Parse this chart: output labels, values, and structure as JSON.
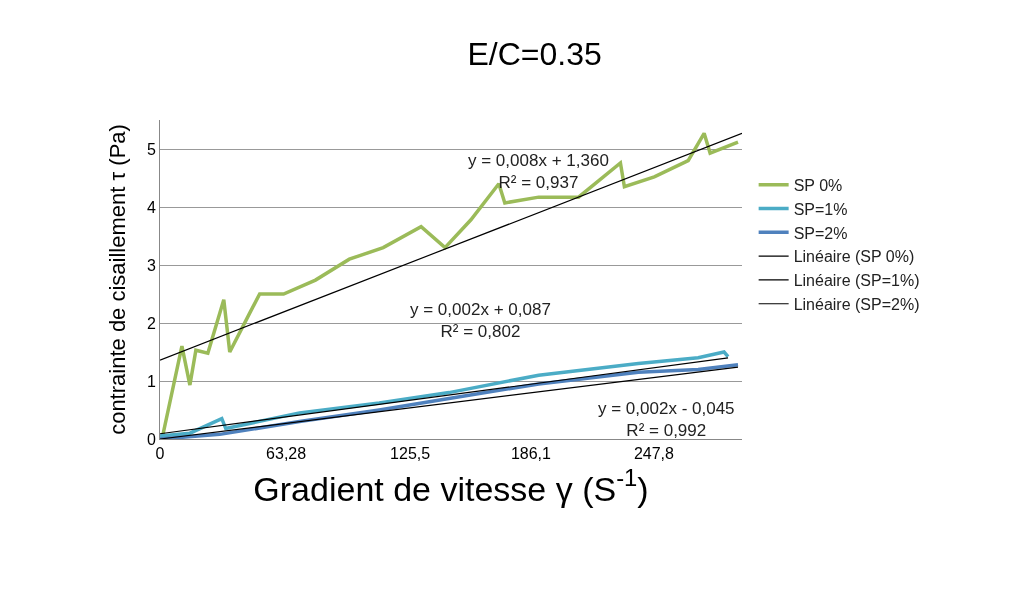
{
  "chart_data": {
    "type": "line",
    "title": "E/C=0.35",
    "xlabel": "Gradient de vitesse γ (S$^{-1}$)",
    "ylabel": "contrainte de cisaillement τ (Pa)",
    "xlim": [
      0,
      292
    ],
    "ylim": [
      0,
      5.5
    ],
    "xticks": [
      0,
      {
        "value": 63.28,
        "label": "63,28"
      },
      {
        "value": 125.5,
        "label": "125,5"
      },
      {
        "value": 186.1,
        "label": "186,1"
      },
      {
        "value": 247.8,
        "label": "247,8"
      }
    ],
    "yticks": [
      0,
      1,
      2,
      3,
      4,
      5
    ],
    "grid": "y",
    "legend": "right",
    "marker": "none",
    "series": [
      {
        "name": "SP 0%",
        "color": "#9bbb59",
        "x": [
          1,
          11,
          15,
          18,
          24,
          32,
          35,
          45,
          50,
          62,
          78,
          95,
          112,
          131,
          143,
          156,
          170,
          173,
          190,
          210,
          231,
          233,
          248,
          265,
          273,
          276,
          290
        ],
        "values": [
          0,
          1.6,
          0.93,
          1.53,
          1.48,
          2.4,
          1.5,
          2.17,
          2.5,
          2.5,
          2.74,
          3.1,
          3.3,
          3.66,
          3.3,
          3.78,
          4.4,
          4.07,
          4.17,
          4.17,
          4.76,
          4.35,
          4.52,
          4.8,
          5.27,
          4.93,
          5.12
        ]
      },
      {
        "name": "SP=1%",
        "color": "#4bacc6",
        "x": [
          0,
          15,
          31,
          33,
          70,
          110,
          145,
          190,
          240,
          270,
          283,
          285
        ],
        "values": [
          0.05,
          0.1,
          0.35,
          0.18,
          0.45,
          0.62,
          0.8,
          1.1,
          1.3,
          1.4,
          1.5,
          1.42
        ]
      },
      {
        "name": "SP=2%",
        "color": "#4f81bd",
        "x": [
          0,
          30,
          70,
          110,
          145,
          190,
          240,
          270,
          290
        ],
        "values": [
          0,
          0.08,
          0.3,
          0.5,
          0.7,
          0.95,
          1.15,
          1.2,
          1.28
        ]
      },
      {
        "name": "Linéaire (SP 0%)",
        "color": "#000000",
        "x": [
          0,
          292
        ],
        "values": [
          1.36,
          5.27
        ]
      },
      {
        "name": "Linéaire (SP=1%)",
        "color": "#000000",
        "x": [
          0,
          285
        ],
        "values": [
          0.09,
          1.4
        ]
      },
      {
        "name": "Linéaire (SP=2%)",
        "color": "#000000",
        "x": [
          0,
          290
        ],
        "values": [
          0,
          1.24
        ]
      }
    ],
    "annotations": [
      "y = 0,008x + 1,360\nR² = 0,937",
      "y = 0,002x + 0,087\nR² = 0,802",
      "y = 0,002x - 0,045\nR² = 0,992"
    ]
  }
}
